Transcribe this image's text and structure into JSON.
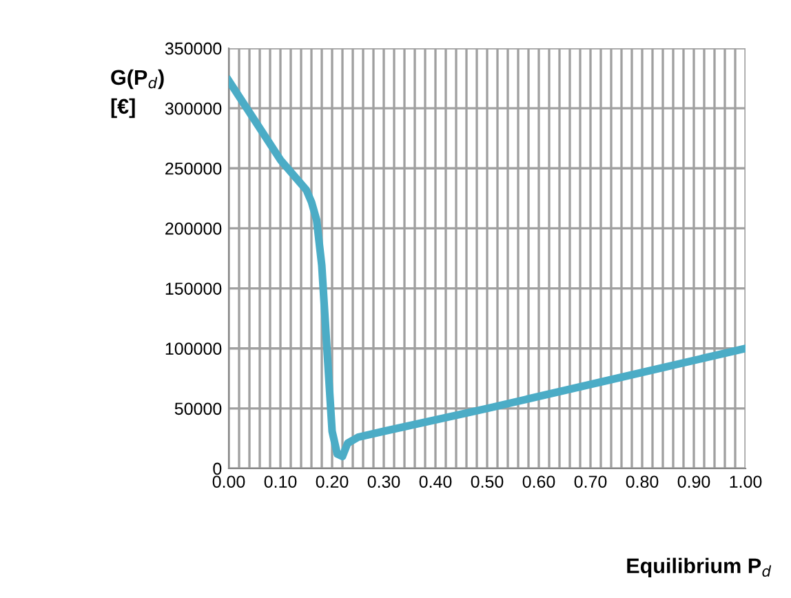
{
  "chart_data": {
    "type": "line",
    "ylabel": "G(P$_{d}$)\n[€]",
    "xlabel": "Equilibrium P$_{d}$",
    "x": [
      0.0,
      0.05,
      0.1,
      0.15,
      0.16,
      0.17,
      0.18,
      0.19,
      0.2,
      0.21,
      0.22,
      0.23,
      0.25,
      0.3,
      0.5,
      0.75,
      1.0
    ],
    "series": [
      {
        "color": "#4bacc6",
        "values": [
          323000,
          290000,
          257000,
          232000,
          222000,
          207000,
          169000,
          100000,
          31000,
          12000,
          10000,
          21000,
          26000,
          31000,
          50000,
          75000,
          100000
        ]
      }
    ],
    "xlim": [
      0,
      1
    ],
    "ylim": [
      0,
      350000
    ],
    "xticks": [
      {
        "value": 0,
        "label": "0.00"
      },
      {
        "value": 0.02,
        "label": null
      },
      {
        "value": 0.04,
        "label": null
      },
      {
        "value": 0.06,
        "label": null
      },
      {
        "value": 0.08,
        "label": null
      },
      {
        "value": 0.1,
        "label": "0.10"
      },
      {
        "value": 0.12,
        "label": null
      },
      {
        "value": 0.14,
        "label": null
      },
      {
        "value": 0.16,
        "label": null
      },
      {
        "value": 0.18,
        "label": null
      },
      {
        "value": 0.2,
        "label": "0.20"
      },
      {
        "value": 0.22,
        "label": null
      },
      {
        "value": 0.24,
        "label": null
      },
      {
        "value": 0.26,
        "label": null
      },
      {
        "value": 0.28,
        "label": null
      },
      {
        "value": 0.3,
        "label": "0.30"
      },
      {
        "value": 0.32,
        "label": null
      },
      {
        "value": 0.34,
        "label": null
      },
      {
        "value": 0.36,
        "label": null
      },
      {
        "value": 0.38,
        "label": null
      },
      {
        "value": 0.4,
        "label": "0.40"
      },
      {
        "value": 0.42,
        "label": null
      },
      {
        "value": 0.44,
        "label": null
      },
      {
        "value": 0.46,
        "label": null
      },
      {
        "value": 0.48,
        "label": null
      },
      {
        "value": 0.5,
        "label": "0.50"
      },
      {
        "value": 0.52,
        "label": null
      },
      {
        "value": 0.54,
        "label": null
      },
      {
        "value": 0.56,
        "label": null
      },
      {
        "value": 0.58,
        "label": null
      },
      {
        "value": 0.6,
        "label": "0.60"
      },
      {
        "value": 0.62,
        "label": null
      },
      {
        "value": 0.64,
        "label": null
      },
      {
        "value": 0.66,
        "label": null
      },
      {
        "value": 0.68,
        "label": null
      },
      {
        "value": 0.7,
        "label": "0.70"
      },
      {
        "value": 0.72,
        "label": null
      },
      {
        "value": 0.74,
        "label": null
      },
      {
        "value": 0.76,
        "label": null
      },
      {
        "value": 0.78,
        "label": null
      },
      {
        "value": 0.8,
        "label": "0.80"
      },
      {
        "value": 0.82,
        "label": null
      },
      {
        "value": 0.84,
        "label": null
      },
      {
        "value": 0.86,
        "label": null
      },
      {
        "value": 0.88,
        "label": null
      },
      {
        "value": 0.9,
        "label": "0.90"
      },
      {
        "value": 0.92,
        "label": null
      },
      {
        "value": 0.94,
        "label": null
      },
      {
        "value": 0.96,
        "label": null
      },
      {
        "value": 0.98,
        "label": null
      },
      {
        "value": 1,
        "label": "1.00"
      }
    ],
    "yticks": [
      0,
      50000,
      100000,
      150000,
      200000,
      250000,
      300000,
      350000
    ],
    "grid": true,
    "marker": "none",
    "line_style": "solid"
  }
}
